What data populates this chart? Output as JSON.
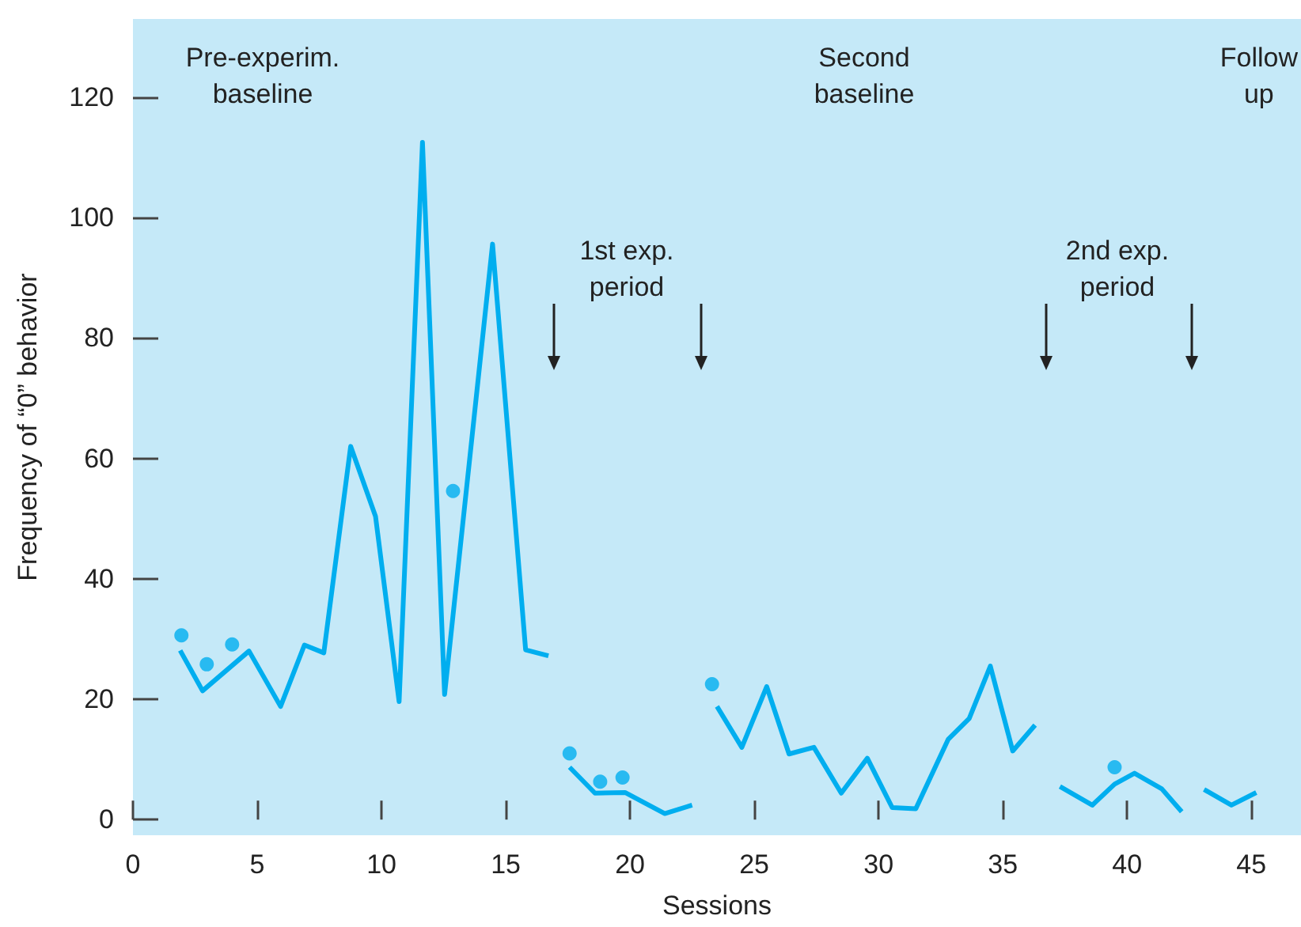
{
  "chart_data": {
    "type": "line",
    "xlabel": "Sessions",
    "ylabel": "Frequency of “0” behavior",
    "xlim": [
      0,
      47
    ],
    "xticks": [
      0,
      5,
      10,
      15,
      20,
      25,
      30,
      35,
      40,
      45
    ],
    "ylim": [
      -2.6,
      133
    ],
    "yticks": [
      0,
      20,
      40,
      60,
      80,
      100,
      120
    ],
    "grid": false,
    "marker": "none",
    "line_style": "solid",
    "series": [
      {
        "color": "#00aeef",
        "x": [
          1.9,
          2.8,
          4.67,
          5.94,
          6.9,
          7.68,
          8.76,
          9.76,
          10.71,
          11.65,
          12.54,
          14.47,
          15.8,
          16.72
        ],
        "values": [
          28.1,
          21.4,
          28,
          18.8,
          29,
          27.7,
          62,
          50.4,
          19.6,
          112.5,
          20.8,
          95.6,
          28.2,
          27.2
        ]
      },
      {
        "color": "#00aeef",
        "x": [
          17.57,
          18.59,
          19.8,
          21.4,
          22.5
        ],
        "values": [
          8.7,
          4.4,
          4.5,
          1,
          2.4
        ]
      },
      {
        "color": "#00aeef",
        "x": [
          23.5,
          24.5,
          25.5,
          26.4,
          27.4,
          28.5,
          29.55,
          30.55,
          31.5,
          32.8,
          33.65,
          34.5,
          35.4,
          36.3
        ],
        "values": [
          18.8,
          12,
          22.1,
          10.9,
          12,
          4.4,
          10.2,
          2,
          1.8,
          13.3,
          16.8,
          25.5,
          11.4,
          15.7
        ]
      },
      {
        "color": "#00aeef",
        "x": [
          37.3,
          38.6,
          39.5,
          40.3,
          41.4,
          42.2
        ],
        "values": [
          5.5,
          2.4,
          5.9,
          7.7,
          5.1,
          1.3
        ]
      },
      {
        "color": "#00aeef",
        "x": [
          43.1,
          44.2,
          45.2
        ],
        "values": [
          5,
          2.4,
          4.5
        ]
      },
      {
        "type": "scatter",
        "marker": "circle",
        "color": "#00aeef",
        "x": [
          1.95,
          2.97,
          3.99,
          12.88,
          17.57,
          18.8,
          19.7,
          23.3,
          39.5
        ],
        "values": [
          30.6,
          25.8,
          29.1,
          54.6,
          11,
          6.3,
          7,
          22.5,
          8.7
        ]
      }
    ],
    "annotations": [
      "Pre-experim.\nbaseline",
      "1st exp.\nperiod",
      "Second\nbaseline",
      "2nd exp.\nperiod",
      "Follow\nup"
    ]
  }
}
